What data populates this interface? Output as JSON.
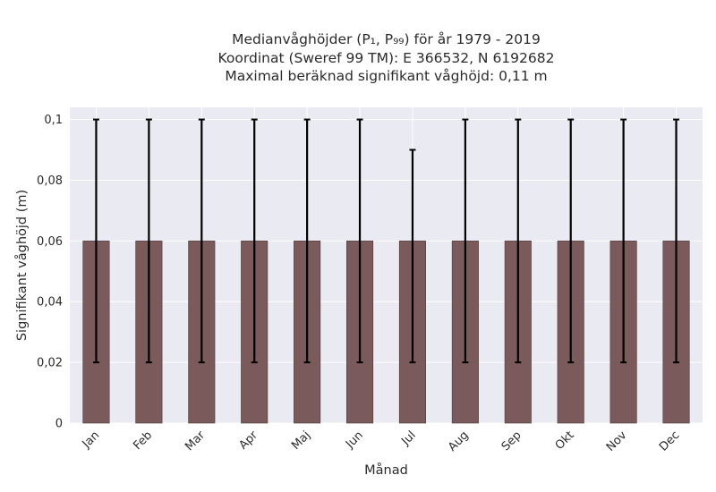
{
  "title": {
    "line1": "Medianvåghöjder (P₁, P₉₉) för år 1979 - 2019",
    "line2": "Koordinat (Sweref 99 TM): E 366532, N 6192682",
    "line3": "Maximal beräknad signifikant våghöjd: 0,11 m"
  },
  "chart_data": {
    "type": "bar",
    "xlabel": "Månad",
    "ylabel": "Signifikant våghöjd (m)",
    "categories": [
      "Jan",
      "Feb",
      "Mar",
      "Apr",
      "Maj",
      "Jun",
      "Jul",
      "Aug",
      "Sep",
      "Okt",
      "Nov",
      "Dec"
    ],
    "series": [
      {
        "values": [
          0.06,
          0.06,
          0.06,
          0.06,
          0.06,
          0.06,
          0.06,
          0.06,
          0.06,
          0.06,
          0.06,
          0.06
        ],
        "error_low": [
          0.02,
          0.02,
          0.02,
          0.02,
          0.02,
          0.02,
          0.02,
          0.02,
          0.02,
          0.02,
          0.02,
          0.02
        ],
        "error_high": [
          0.1,
          0.1,
          0.1,
          0.1,
          0.1,
          0.1,
          0.09,
          0.1,
          0.1,
          0.1,
          0.1,
          0.1
        ]
      }
    ],
    "ylim": [
      0,
      0.104
    ],
    "yticks": [
      0,
      0.02,
      0.04,
      0.06,
      0.08,
      0.1
    ],
    "ytick_labels": [
      "0",
      "0,02",
      "0,04",
      "0,06",
      "0,08",
      "0,1"
    ],
    "grid": true,
    "colors": {
      "bar": "#7a5a5a",
      "background": "#eaeaf2",
      "grid": "#ffffff",
      "errorbar": "#000000"
    }
  }
}
